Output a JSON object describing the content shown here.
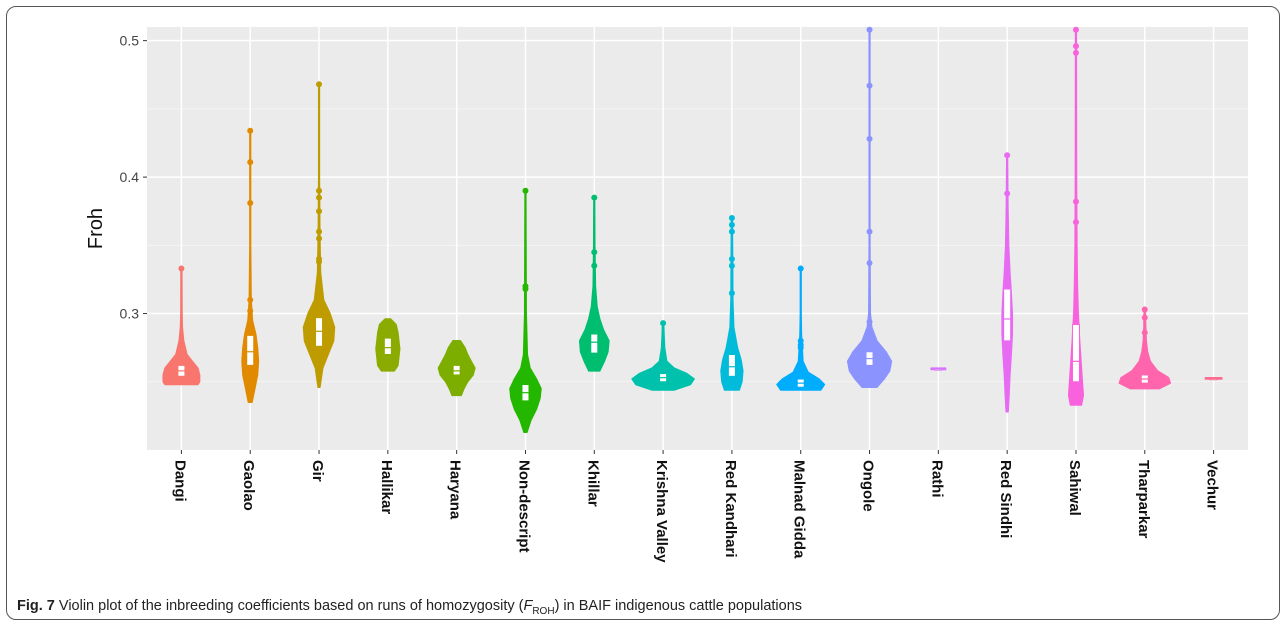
{
  "chart_data": {
    "type": "violin",
    "ylabel": "Froh",
    "xlabel": "",
    "ylim": [
      0.2,
      0.51
    ],
    "yticks": [
      0.3,
      0.4,
      0.5
    ],
    "ytick_labels": [
      "0.3",
      "0.4",
      "0.5"
    ],
    "grid": true,
    "background": "#ebebeb",
    "categories": [
      "Dangi",
      "Gaolao",
      "Gir",
      "Hallikar",
      "Haryana",
      "Non-descript",
      "Khillar",
      "Krishna Valley",
      "Red Kandhari",
      "Malnad Gidda",
      "Ongole",
      "Rathi",
      "Red Sindhi",
      "Sahiwal",
      "Tharparkar",
      "Vechur"
    ],
    "series": [
      {
        "name": "Dangi",
        "color": "#f8766d",
        "min": 0.248,
        "max": 0.333,
        "median": 0.258,
        "q1": 0.254,
        "q3": 0.262,
        "outliers": [
          0.333
        ],
        "width_profile": [
          [
            0.248,
            0.9
          ],
          [
            0.25,
            1.0
          ],
          [
            0.255,
            1.0
          ],
          [
            0.26,
            0.9
          ],
          [
            0.265,
            0.6
          ],
          [
            0.27,
            0.3
          ],
          [
            0.28,
            0.12
          ],
          [
            0.29,
            0.05
          ],
          [
            0.3,
            0.03
          ],
          [
            0.333,
            0.02
          ]
        ]
      },
      {
        "name": "Gaolao",
        "color": "#e18a00",
        "min": 0.235,
        "max": 0.434,
        "median": 0.272,
        "q1": 0.262,
        "q3": 0.284,
        "outliers": [
          0.434,
          0.411,
          0.381,
          0.31,
          0.302
        ],
        "width_profile": [
          [
            0.235,
            0.1
          ],
          [
            0.245,
            0.25
          ],
          [
            0.255,
            0.4
          ],
          [
            0.265,
            0.45
          ],
          [
            0.275,
            0.4
          ],
          [
            0.285,
            0.3
          ],
          [
            0.295,
            0.12
          ],
          [
            0.31,
            0.05
          ],
          [
            0.35,
            0.02
          ],
          [
            0.434,
            0.02
          ]
        ]
      },
      {
        "name": "Gir",
        "color": "#be9c00",
        "min": 0.246,
        "max": 0.468,
        "median": 0.287,
        "q1": 0.276,
        "q3": 0.297,
        "outliers": [
          0.468,
          0.39,
          0.385,
          0.375,
          0.36,
          0.355,
          0.34,
          0.338,
          0.31,
          0.305
        ],
        "width_profile": [
          [
            0.246,
            0.05
          ],
          [
            0.26,
            0.2
          ],
          [
            0.27,
            0.5
          ],
          [
            0.28,
            0.8
          ],
          [
            0.29,
            0.85
          ],
          [
            0.3,
            0.6
          ],
          [
            0.31,
            0.25
          ],
          [
            0.33,
            0.08
          ],
          [
            0.36,
            0.04
          ],
          [
            0.4,
            0.02
          ],
          [
            0.468,
            0.02
          ]
        ]
      },
      {
        "name": "Hallikar",
        "color": "#8cab00",
        "min": 0.258,
        "max": 0.296,
        "median": 0.275,
        "q1": 0.27,
        "q3": 0.282,
        "outliers": [],
        "width_profile": [
          [
            0.258,
            0.35
          ],
          [
            0.262,
            0.55
          ],
          [
            0.268,
            0.6
          ],
          [
            0.274,
            0.65
          ],
          [
            0.28,
            0.6
          ],
          [
            0.286,
            0.55
          ],
          [
            0.292,
            0.45
          ],
          [
            0.296,
            0.15
          ]
        ]
      },
      {
        "name": "Haryana",
        "color": "#7cae00",
        "min": 0.24,
        "max": 0.28,
        "median": 0.258,
        "q1": 0.255,
        "q3": 0.262,
        "outliers": [],
        "width_profile": [
          [
            0.24,
            0.25
          ],
          [
            0.245,
            0.4
          ],
          [
            0.25,
            0.6
          ],
          [
            0.255,
            0.9
          ],
          [
            0.26,
            1.0
          ],
          [
            0.265,
            0.8
          ],
          [
            0.27,
            0.6
          ],
          [
            0.275,
            0.45
          ],
          [
            0.28,
            0.2
          ]
        ]
      },
      {
        "name": "Non-descript",
        "color": "#24b700",
        "min": 0.213,
        "max": 0.39,
        "median": 0.242,
        "q1": 0.236,
        "q3": 0.248,
        "outliers": [
          0.39,
          0.32,
          0.318
        ],
        "width_profile": [
          [
            0.213,
            0.08
          ],
          [
            0.222,
            0.3
          ],
          [
            0.23,
            0.6
          ],
          [
            0.238,
            0.8
          ],
          [
            0.245,
            0.85
          ],
          [
            0.252,
            0.6
          ],
          [
            0.26,
            0.25
          ],
          [
            0.27,
            0.1
          ],
          [
            0.3,
            0.04
          ],
          [
            0.39,
            0.02
          ]
        ]
      },
      {
        "name": "Khillar",
        "color": "#00be70",
        "min": 0.258,
        "max": 0.385,
        "median": 0.279,
        "q1": 0.271,
        "q3": 0.285,
        "outliers": [
          0.385,
          0.345,
          0.335
        ],
        "width_profile": [
          [
            0.258,
            0.3
          ],
          [
            0.265,
            0.55
          ],
          [
            0.272,
            0.75
          ],
          [
            0.28,
            0.8
          ],
          [
            0.288,
            0.5
          ],
          [
            0.296,
            0.3
          ],
          [
            0.305,
            0.15
          ],
          [
            0.32,
            0.06
          ],
          [
            0.35,
            0.03
          ],
          [
            0.385,
            0.02
          ]
        ]
      },
      {
        "name": "Krishna Valley",
        "color": "#00c1ab",
        "min": 0.244,
        "max": 0.293,
        "median": 0.253,
        "q1": 0.25,
        "q3": 0.256,
        "outliers": [
          0.293
        ],
        "width_profile": [
          [
            0.244,
            0.6
          ],
          [
            0.248,
            1.5
          ],
          [
            0.252,
            1.7
          ],
          [
            0.256,
            1.3
          ],
          [
            0.26,
            0.6
          ],
          [
            0.265,
            0.2
          ],
          [
            0.275,
            0.08
          ],
          [
            0.285,
            0.05
          ],
          [
            0.293,
            0.03
          ]
        ]
      },
      {
        "name": "Red Kandhari",
        "color": "#00bbda",
        "min": 0.244,
        "max": 0.37,
        "median": 0.261,
        "q1": 0.254,
        "q3": 0.27,
        "outliers": [
          0.37,
          0.365,
          0.36,
          0.34,
          0.335,
          0.315
        ],
        "width_profile": [
          [
            0.244,
            0.4
          ],
          [
            0.25,
            0.55
          ],
          [
            0.258,
            0.6
          ],
          [
            0.266,
            0.5
          ],
          [
            0.275,
            0.3
          ],
          [
            0.29,
            0.1
          ],
          [
            0.31,
            0.05
          ],
          [
            0.34,
            0.04
          ],
          [
            0.37,
            0.02
          ]
        ]
      },
      {
        "name": "Malnad Gidda",
        "color": "#00acfc",
        "min": 0.244,
        "max": 0.333,
        "median": 0.249,
        "q1": 0.246,
        "q3": 0.252,
        "outliers": [
          0.333,
          0.28,
          0.277,
          0.275
        ],
        "width_profile": [
          [
            0.244,
            1.1
          ],
          [
            0.248,
            1.3
          ],
          [
            0.252,
            1.0
          ],
          [
            0.257,
            0.4
          ],
          [
            0.265,
            0.12
          ],
          [
            0.275,
            0.08
          ],
          [
            0.285,
            0.04
          ],
          [
            0.3,
            0.02
          ],
          [
            0.333,
            0.02
          ]
        ]
      },
      {
        "name": "Ongole",
        "color": "#8b93ff",
        "min": 0.246,
        "max": 0.508,
        "median": 0.267,
        "q1": 0.262,
        "q3": 0.272,
        "outliers": [
          0.508,
          0.467,
          0.428,
          0.36,
          0.337,
          0.294
        ],
        "width_profile": [
          [
            0.246,
            0.4
          ],
          [
            0.252,
            0.8
          ],
          [
            0.258,
            1.1
          ],
          [
            0.265,
            1.2
          ],
          [
            0.272,
            0.9
          ],
          [
            0.28,
            0.4
          ],
          [
            0.29,
            0.12
          ],
          [
            0.3,
            0.04
          ],
          [
            0.35,
            0.02
          ],
          [
            0.508,
            0.02
          ]
        ]
      },
      {
        "name": "Rathi",
        "color": "#d575fe",
        "min": 0.259,
        "max": 0.26,
        "median": 0.2595,
        "q1": 0.259,
        "q3": 0.26,
        "outliers": [],
        "width_profile": [
          [
            0.259,
            0.4
          ],
          [
            0.26,
            0.4
          ]
        ]
      },
      {
        "name": "Red Sindhi",
        "color": "#e76bf3",
        "min": 0.228,
        "max": 0.416,
        "median": 0.296,
        "q1": 0.28,
        "q3": 0.318,
        "outliers": [
          0.416,
          0.388
        ],
        "width_profile": [
          [
            0.228,
            0.05
          ],
          [
            0.24,
            0.1
          ],
          [
            0.255,
            0.15
          ],
          [
            0.27,
            0.22
          ],
          [
            0.285,
            0.28
          ],
          [
            0.3,
            0.28
          ],
          [
            0.315,
            0.22
          ],
          [
            0.33,
            0.15
          ],
          [
            0.35,
            0.08
          ],
          [
            0.38,
            0.04
          ],
          [
            0.416,
            0.02
          ]
        ]
      },
      {
        "name": "Sahiwal",
        "color": "#f962dd",
        "min": 0.233,
        "max": 0.508,
        "median": 0.265,
        "q1": 0.25,
        "q3": 0.292,
        "outliers": [
          0.508,
          0.496,
          0.491,
          0.382,
          0.367
        ],
        "width_profile": [
          [
            0.233,
            0.3
          ],
          [
            0.24,
            0.4
          ],
          [
            0.25,
            0.35
          ],
          [
            0.26,
            0.3
          ],
          [
            0.27,
            0.25
          ],
          [
            0.28,
            0.2
          ],
          [
            0.3,
            0.12
          ],
          [
            0.32,
            0.08
          ],
          [
            0.35,
            0.05
          ],
          [
            0.4,
            0.03
          ],
          [
            0.508,
            0.02
          ]
        ]
      },
      {
        "name": "Tharparkar",
        "color": "#ff65ac",
        "min": 0.245,
        "max": 0.303,
        "median": 0.252,
        "q1": 0.249,
        "q3": 0.255,
        "outliers": [
          0.303,
          0.297,
          0.286
        ],
        "width_profile": [
          [
            0.245,
            0.8
          ],
          [
            0.249,
            1.4
          ],
          [
            0.253,
            1.3
          ],
          [
            0.258,
            0.7
          ],
          [
            0.265,
            0.3
          ],
          [
            0.272,
            0.15
          ],
          [
            0.28,
            0.08
          ],
          [
            0.29,
            0.05
          ],
          [
            0.303,
            0.03
          ]
        ]
      },
      {
        "name": "Vechur",
        "color": "#ff6c90",
        "min": 0.252,
        "max": 0.253,
        "median": 0.2525,
        "q1": 0.252,
        "q3": 0.253,
        "outliers": [],
        "width_profile": [
          [
            0.252,
            0.45
          ],
          [
            0.253,
            0.45
          ]
        ]
      }
    ]
  },
  "caption": {
    "label": "Fig. 7",
    "text_before": "Violin plot of the inbreeding coefficients based on runs of homozygosity (",
    "sym_main": "F",
    "sym_sub": "ROH",
    "text_after": ") in BAIF indigenous cattle populations"
  }
}
